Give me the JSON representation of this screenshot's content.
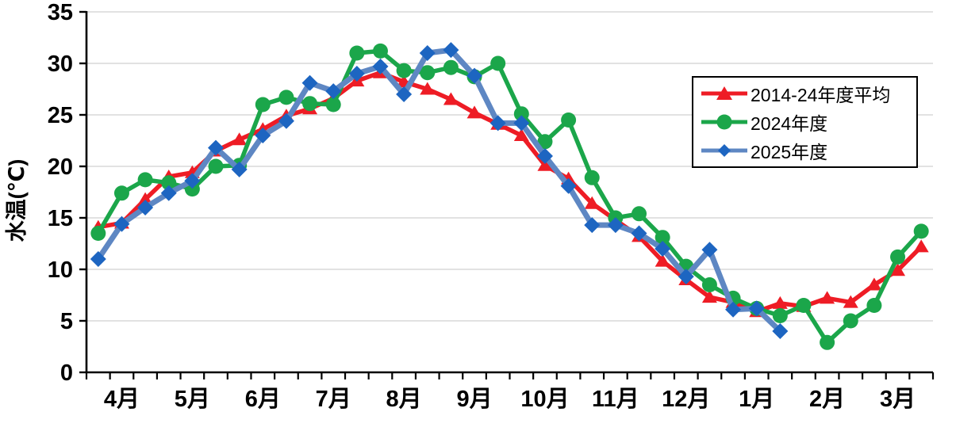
{
  "chart_data": {
    "type": "line",
    "title": "",
    "ylabel": "水温(℃)",
    "ylim": [
      0,
      35
    ],
    "ytick_step": 5,
    "grid": true,
    "legend_position": "top-right",
    "months": [
      "4月",
      "5月",
      "6月",
      "7月",
      "8月",
      "9月",
      "10月",
      "11月",
      "12月",
      "1月",
      "2月",
      "3月"
    ],
    "points_per_month": 3,
    "colors": {
      "axis": "#000000",
      "gridline": "#d9d9d9",
      "background": "#ffffff"
    },
    "series": [
      {
        "name": "2014-24年度平均",
        "marker": "triangle",
        "color": "#ee1c25",
        "line_color": "#ee1c25",
        "values": [
          14.1,
          14.5,
          16.8,
          19.0,
          19.4,
          21.5,
          22.6,
          23.6,
          24.9,
          25.6,
          26.6,
          28.3,
          29.1,
          28.2,
          27.5,
          26.5,
          25.2,
          24.1,
          23.0,
          20.1,
          18.8,
          16.4,
          14.8,
          13.2,
          10.8,
          9.0,
          7.3,
          6.8,
          5.9,
          6.7,
          6.4,
          7.2,
          6.8,
          8.5,
          9.9,
          12.2
        ]
      },
      {
        "name": "2024年度",
        "marker": "circle",
        "color": "#1ba64a",
        "line_color": "#1ba64a",
        "values": [
          13.5,
          17.4,
          18.7,
          18.4,
          17.8,
          20.0,
          20.1,
          26.0,
          26.7,
          26.1,
          26.0,
          31.0,
          31.2,
          29.3,
          29.1,
          29.6,
          28.7,
          30.0,
          25.1,
          22.4,
          24.5,
          18.9,
          15.0,
          15.4,
          13.1,
          10.3,
          8.5,
          7.2,
          6.2,
          5.5,
          6.5,
          2.9,
          5.0,
          6.5,
          11.2,
          13.7
        ]
      },
      {
        "name": "2025年度",
        "marker": "diamond",
        "color": "#1d65c1",
        "line_color": "#5e87c3",
        "values": [
          11.0,
          14.4,
          16.0,
          17.4,
          18.6,
          21.8,
          19.7,
          23.0,
          24.4,
          28.1,
          27.3,
          29.0,
          29.7,
          27.0,
          31.0,
          31.3,
          28.8,
          24.2,
          24.2,
          21.0,
          18.1,
          14.3,
          14.3,
          13.5,
          12.0,
          9.3,
          11.9,
          6.1,
          6.2,
          4.0,
          null,
          null,
          null,
          null,
          null,
          null
        ]
      }
    ]
  }
}
